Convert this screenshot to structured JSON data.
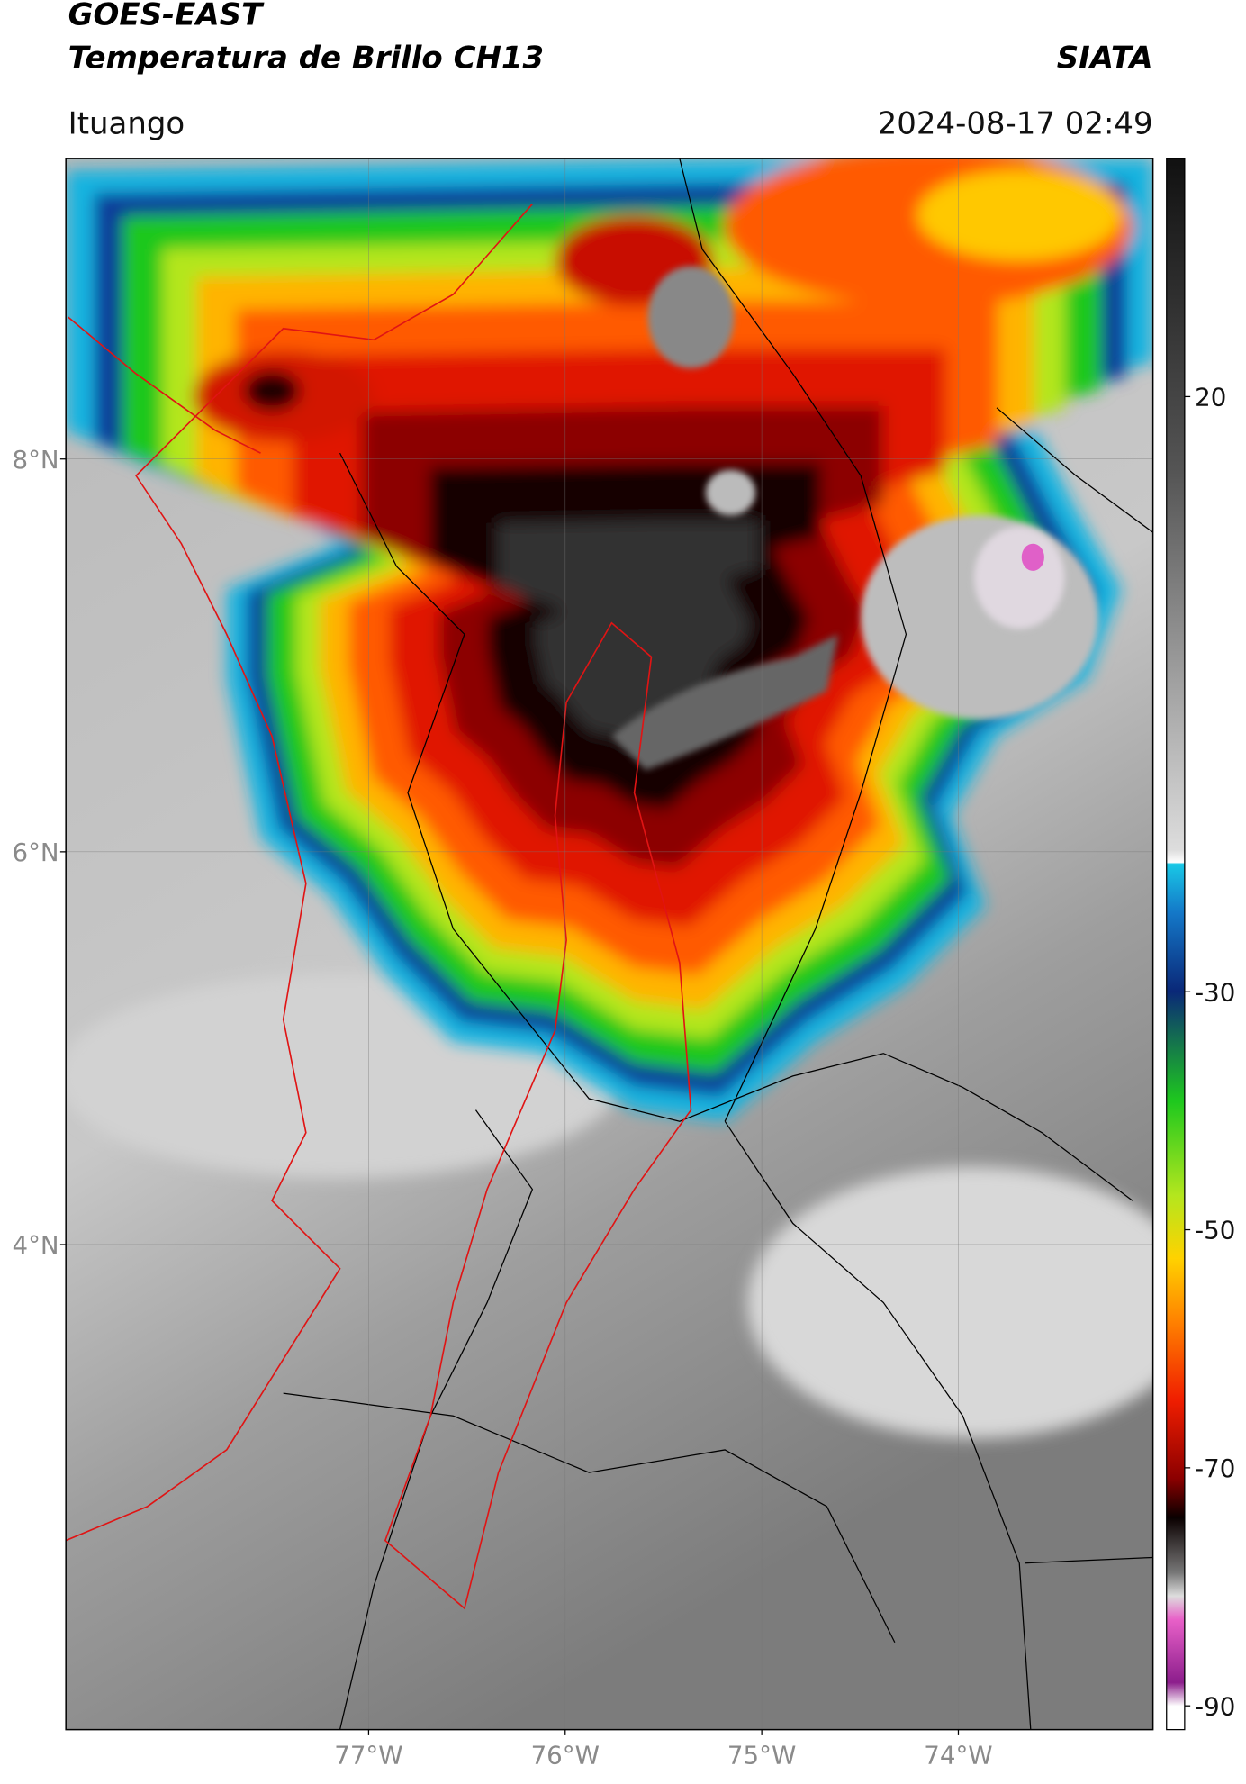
{
  "header": {
    "title": "GOES-EAST",
    "subtitle": "Temperatura de Brillo CH13",
    "agency": "SIATA",
    "region": "Ituango",
    "timestamp": "2024-08-17 02:49"
  },
  "map": {
    "lon_range": [
      -78.54,
      -73.01
    ],
    "lat_range": [
      1.53,
      9.53
    ],
    "lat_ticks": [
      {
        "value": 8,
        "label": "8°N"
      },
      {
        "value": 6,
        "label": "6°N"
      },
      {
        "value": 4,
        "label": "4°N"
      }
    ],
    "lon_ticks": [
      {
        "value": -77,
        "label": "77°W"
      },
      {
        "value": -76,
        "label": "76°W"
      },
      {
        "value": -75,
        "label": "75°W"
      },
      {
        "value": -74,
        "label": "74°W"
      }
    ]
  },
  "colorbar": {
    "range": [
      -92,
      40
    ],
    "ticks": [
      20,
      -30,
      -50,
      -70,
      -90
    ]
  }
}
